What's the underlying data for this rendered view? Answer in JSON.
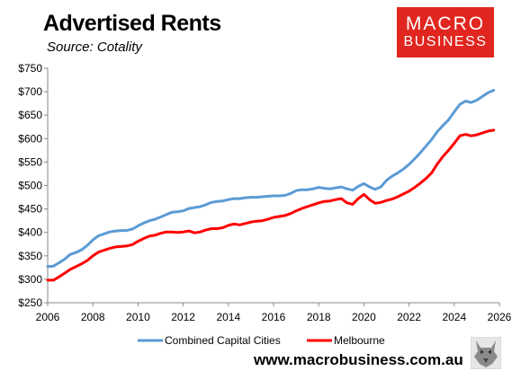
{
  "header": {
    "title": "Advertised Rents",
    "subtitle": "Source: Cotality"
  },
  "logo": {
    "line1": "MACRO",
    "line2": "BUSINESS",
    "color": "#e0261f"
  },
  "footer": {
    "website": "www.macrobusiness.com.au",
    "badge_icon": "wolf-icon"
  },
  "chart_data": {
    "type": "line",
    "title": "Advertised Rents",
    "subtitle": "Source: Cotality",
    "xlim": [
      2006,
      2026
    ],
    "ylim": [
      250,
      750
    ],
    "x_ticks": [
      2006,
      2008,
      2010,
      2012,
      2014,
      2016,
      2018,
      2020,
      2022,
      2024,
      2026
    ],
    "y_ticks": [
      250,
      300,
      350,
      400,
      450,
      500,
      550,
      600,
      650,
      700,
      750
    ],
    "y_tick_labels": [
      "$250",
      "$300",
      "$350",
      "$400",
      "$450",
      "$500",
      "$550",
      "$600",
      "$650",
      "$700",
      "$750"
    ],
    "grid": false,
    "legend_position": "bottom",
    "series": [
      {
        "name": "Combined Capital Cities",
        "color": "#5b9bd5",
        "points": [
          [
            2006.0,
            327
          ],
          [
            2006.25,
            328
          ],
          [
            2006.5,
            335
          ],
          [
            2006.75,
            343
          ],
          [
            2007.0,
            353
          ],
          [
            2007.25,
            357
          ],
          [
            2007.5,
            363
          ],
          [
            2007.75,
            372
          ],
          [
            2008.0,
            384
          ],
          [
            2008.25,
            393
          ],
          [
            2008.5,
            397
          ],
          [
            2008.75,
            401
          ],
          [
            2009.0,
            403
          ],
          [
            2009.25,
            404
          ],
          [
            2009.5,
            404
          ],
          [
            2009.75,
            407
          ],
          [
            2010.0,
            414
          ],
          [
            2010.25,
            420
          ],
          [
            2010.5,
            425
          ],
          [
            2010.75,
            428
          ],
          [
            2011.0,
            433
          ],
          [
            2011.25,
            438
          ],
          [
            2011.5,
            443
          ],
          [
            2011.75,
            444
          ],
          [
            2012.0,
            446
          ],
          [
            2012.25,
            451
          ],
          [
            2012.5,
            453
          ],
          [
            2012.75,
            455
          ],
          [
            2013.0,
            459
          ],
          [
            2013.25,
            464
          ],
          [
            2013.5,
            466
          ],
          [
            2013.75,
            467
          ],
          [
            2014.0,
            470
          ],
          [
            2014.25,
            472
          ],
          [
            2014.5,
            472
          ],
          [
            2014.75,
            474
          ],
          [
            2015.0,
            475
          ],
          [
            2015.25,
            475
          ],
          [
            2015.5,
            476
          ],
          [
            2015.75,
            477
          ],
          [
            2016.0,
            478
          ],
          [
            2016.25,
            478
          ],
          [
            2016.5,
            479
          ],
          [
            2016.75,
            483
          ],
          [
            2017.0,
            489
          ],
          [
            2017.25,
            491
          ],
          [
            2017.5,
            491
          ],
          [
            2017.75,
            493
          ],
          [
            2018.0,
            496
          ],
          [
            2018.25,
            494
          ],
          [
            2018.5,
            493
          ],
          [
            2018.75,
            495
          ],
          [
            2019.0,
            497
          ],
          [
            2019.25,
            493
          ],
          [
            2019.5,
            490
          ],
          [
            2019.75,
            498
          ],
          [
            2020.0,
            504
          ],
          [
            2020.25,
            497
          ],
          [
            2020.5,
            492
          ],
          [
            2020.75,
            497
          ],
          [
            2021.0,
            511
          ],
          [
            2021.25,
            520
          ],
          [
            2021.5,
            527
          ],
          [
            2021.75,
            535
          ],
          [
            2022.0,
            545
          ],
          [
            2022.25,
            557
          ],
          [
            2022.5,
            570
          ],
          [
            2022.75,
            584
          ],
          [
            2023.0,
            598
          ],
          [
            2023.25,
            615
          ],
          [
            2023.5,
            628
          ],
          [
            2023.75,
            640
          ],
          [
            2024.0,
            657
          ],
          [
            2024.25,
            673
          ],
          [
            2024.5,
            680
          ],
          [
            2024.75,
            677
          ],
          [
            2025.0,
            682
          ],
          [
            2025.25,
            690
          ],
          [
            2025.5,
            698
          ],
          [
            2025.75,
            703
          ]
        ]
      },
      {
        "name": "Melbourne",
        "color": "#ff0000",
        "points": [
          [
            2006.0,
            298
          ],
          [
            2006.25,
            298
          ],
          [
            2006.5,
            305
          ],
          [
            2006.75,
            313
          ],
          [
            2007.0,
            321
          ],
          [
            2007.25,
            327
          ],
          [
            2007.5,
            333
          ],
          [
            2007.75,
            340
          ],
          [
            2008.0,
            350
          ],
          [
            2008.25,
            358
          ],
          [
            2008.5,
            362
          ],
          [
            2008.75,
            366
          ],
          [
            2009.0,
            369
          ],
          [
            2009.25,
            370
          ],
          [
            2009.5,
            371
          ],
          [
            2009.75,
            374
          ],
          [
            2010.0,
            381
          ],
          [
            2010.25,
            387
          ],
          [
            2010.5,
            392
          ],
          [
            2010.75,
            394
          ],
          [
            2011.0,
            398
          ],
          [
            2011.25,
            401
          ],
          [
            2011.5,
            401
          ],
          [
            2011.75,
            400
          ],
          [
            2012.0,
            401
          ],
          [
            2012.25,
            403
          ],
          [
            2012.5,
            399
          ],
          [
            2012.75,
            401
          ],
          [
            2013.0,
            405
          ],
          [
            2013.25,
            408
          ],
          [
            2013.5,
            408
          ],
          [
            2013.75,
            410
          ],
          [
            2014.0,
            415
          ],
          [
            2014.25,
            418
          ],
          [
            2014.5,
            416
          ],
          [
            2014.75,
            419
          ],
          [
            2015.0,
            422
          ],
          [
            2015.25,
            424
          ],
          [
            2015.5,
            425
          ],
          [
            2015.75,
            428
          ],
          [
            2016.0,
            432
          ],
          [
            2016.25,
            434
          ],
          [
            2016.5,
            436
          ],
          [
            2016.75,
            440
          ],
          [
            2017.0,
            446
          ],
          [
            2017.25,
            451
          ],
          [
            2017.5,
            455
          ],
          [
            2017.75,
            459
          ],
          [
            2018.0,
            463
          ],
          [
            2018.25,
            466
          ],
          [
            2018.5,
            467
          ],
          [
            2018.75,
            470
          ],
          [
            2019.0,
            472
          ],
          [
            2019.25,
            463
          ],
          [
            2019.5,
            460
          ],
          [
            2019.75,
            472
          ],
          [
            2020.0,
            481
          ],
          [
            2020.25,
            470
          ],
          [
            2020.5,
            462
          ],
          [
            2020.75,
            464
          ],
          [
            2021.0,
            468
          ],
          [
            2021.25,
            471
          ],
          [
            2021.5,
            476
          ],
          [
            2021.75,
            482
          ],
          [
            2022.0,
            488
          ],
          [
            2022.25,
            496
          ],
          [
            2022.5,
            505
          ],
          [
            2022.75,
            515
          ],
          [
            2023.0,
            527
          ],
          [
            2023.25,
            546
          ],
          [
            2023.5,
            562
          ],
          [
            2023.75,
            575
          ],
          [
            2024.0,
            590
          ],
          [
            2024.25,
            606
          ],
          [
            2024.5,
            609
          ],
          [
            2024.75,
            606
          ],
          [
            2025.0,
            608
          ],
          [
            2025.25,
            612
          ],
          [
            2025.5,
            616
          ],
          [
            2025.75,
            618
          ]
        ]
      }
    ]
  }
}
